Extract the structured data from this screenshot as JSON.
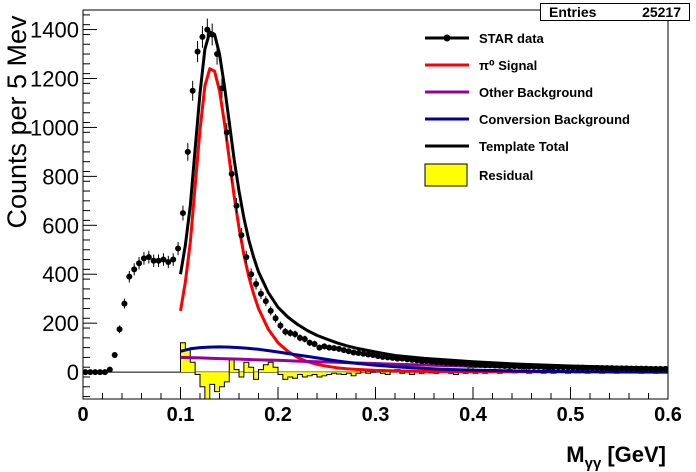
{
  "stats": {
    "entries_label": "Entries",
    "entries_value": "25217"
  },
  "chart_data": {
    "type": "line",
    "xlabel": "M",
    "xlabel_sub": "γγ",
    "xlabel_unit": "[GeV]",
    "ylabel": "Counts per 5 Mev",
    "xlim": [
      0,
      0.6
    ],
    "ylim": [
      -110,
      1480
    ],
    "x_ticks": [
      "0",
      "0.1",
      "0.2",
      "0.3",
      "0.4",
      "0.5",
      "0.6"
    ],
    "x_tick_values": [
      0,
      0.1,
      0.2,
      0.3,
      0.4,
      0.5,
      0.6
    ],
    "y_ticks": [
      "0",
      "200",
      "400",
      "600",
      "800",
      "1000",
      "1200",
      "1400"
    ],
    "y_tick_values": [
      0,
      200,
      400,
      600,
      800,
      1000,
      1200,
      1400
    ],
    "grid": false,
    "legend_position": "top-right",
    "legend": [
      {
        "label": "STAR data",
        "kind": "marker-line",
        "color": "#000000"
      },
      {
        "label": "π⁰ Signal",
        "kind": "line",
        "color": "#ff0000"
      },
      {
        "label": "Other Background",
        "kind": "line",
        "color": "#990099"
      },
      {
        "label": "Conversion Background",
        "kind": "line",
        "color": "#000099"
      },
      {
        "label": "Template Total",
        "kind": "line",
        "color": "#000000"
      },
      {
        "label": "Residual",
        "kind": "box",
        "color": "#ffff00"
      }
    ],
    "series": [
      {
        "name": "STAR data",
        "kind": "points",
        "color": "#000000",
        "x": [
          0.0025,
          0.0075,
          0.0125,
          0.0175,
          0.0225,
          0.0275,
          0.0325,
          0.0375,
          0.0425,
          0.0475,
          0.0525,
          0.0575,
          0.0625,
          0.0675,
          0.0725,
          0.0775,
          0.0825,
          0.0875,
          0.0925,
          0.0975,
          0.1025,
          0.1075,
          0.1125,
          0.1175,
          0.1225,
          0.1275,
          0.1325,
          0.1375,
          0.1425,
          0.1475,
          0.1525,
          0.1575,
          0.1625,
          0.1675,
          0.1725,
          0.1775,
          0.1825,
          0.1875,
          0.1925,
          0.1975,
          0.2025,
          0.2075,
          0.2125,
          0.2175,
          0.2225,
          0.2275,
          0.2325,
          0.2375,
          0.2425,
          0.2475,
          0.2525,
          0.2575,
          0.2625,
          0.2675,
          0.2725,
          0.2775,
          0.2825,
          0.2875,
          0.2925,
          0.2975,
          0.3025,
          0.3075,
          0.3125,
          0.3175,
          0.3225,
          0.3275,
          0.3325,
          0.3375,
          0.3425,
          0.3475,
          0.3525,
          0.3575,
          0.3625,
          0.3675,
          0.3725,
          0.3775,
          0.3825,
          0.3875,
          0.3925,
          0.3975,
          0.4025,
          0.4075,
          0.4125,
          0.4175,
          0.4225,
          0.4275,
          0.4325,
          0.4375,
          0.4425,
          0.4475,
          0.4525,
          0.4575,
          0.4625,
          0.4675,
          0.4725,
          0.4775,
          0.4825,
          0.4875,
          0.4925,
          0.4975,
          0.5025,
          0.5075,
          0.5125,
          0.5175,
          0.5225,
          0.5275,
          0.5325,
          0.5375,
          0.5425,
          0.5475,
          0.5525,
          0.5575,
          0.5625,
          0.5675,
          0.5725,
          0.5775,
          0.5825,
          0.5875,
          0.5925,
          0.5975
        ],
        "y": [
          0,
          0,
          0,
          0,
          0,
          10,
          70,
          175,
          280,
          390,
          420,
          445,
          465,
          470,
          455,
          455,
          460,
          450,
          460,
          505,
          650,
          900,
          1150,
          1310,
          1370,
          1400,
          1380,
          1300,
          1160,
          980,
          810,
          680,
          560,
          470,
          400,
          360,
          320,
          290,
          250,
          220,
          190,
          165,
          160,
          155,
          140,
          135,
          120,
          115,
          100,
          105,
          100,
          98,
          95,
          90,
          85,
          80,
          78,
          75,
          72,
          70,
          65,
          62,
          60,
          58,
          55,
          55,
          52,
          50,
          48,
          45,
          45,
          42,
          40,
          40,
          38,
          36,
          35,
          35,
          33,
          32,
          30,
          30,
          28,
          28,
          27,
          26,
          25,
          25,
          24,
          24,
          23,
          23,
          22,
          22,
          21,
          21,
          20,
          20,
          19,
          19,
          18,
          18,
          18,
          17,
          17,
          17,
          16,
          16,
          16,
          15,
          15,
          15,
          14,
          14,
          14,
          14,
          13,
          13,
          13,
          13
        ]
      },
      {
        "name": "π⁰ Signal",
        "kind": "curve",
        "color": "#ff0000",
        "x": [
          0.1,
          0.105,
          0.11,
          0.115,
          0.12,
          0.125,
          0.13,
          0.135,
          0.14,
          0.145,
          0.15,
          0.155,
          0.16,
          0.165,
          0.17,
          0.175,
          0.18,
          0.19,
          0.2,
          0.21,
          0.22,
          0.23,
          0.24,
          0.25,
          0.26,
          0.27,
          0.28,
          0.3,
          0.32,
          0.35,
          0.4,
          0.45,
          0.5,
          0.55,
          0.6
        ],
        "y": [
          250,
          370,
          530,
          760,
          990,
          1170,
          1240,
          1230,
          1150,
          1020,
          870,
          720,
          590,
          480,
          390,
          320,
          260,
          175,
          120,
          85,
          60,
          43,
          32,
          24,
          18,
          14,
          11,
          7,
          5,
          3,
          2,
          1,
          1,
          0,
          0
        ]
      },
      {
        "name": "Other Background",
        "kind": "curve",
        "color": "#990099",
        "x": [
          0.1,
          0.12,
          0.14,
          0.16,
          0.18,
          0.2,
          0.22,
          0.24,
          0.26,
          0.28,
          0.3,
          0.32,
          0.34,
          0.36,
          0.38,
          0.4,
          0.45,
          0.5,
          0.55,
          0.6
        ],
        "y": [
          60,
          58,
          55,
          53,
          50,
          48,
          45,
          42,
          40,
          37,
          35,
          32,
          30,
          28,
          26,
          24,
          20,
          17,
          15,
          13
        ]
      },
      {
        "name": "Conversion Background",
        "kind": "curve",
        "color": "#000099",
        "x": [
          0.1,
          0.11,
          0.12,
          0.13,
          0.14,
          0.15,
          0.16,
          0.17,
          0.18,
          0.19,
          0.2,
          0.21,
          0.22,
          0.23,
          0.24,
          0.25,
          0.26,
          0.27,
          0.28,
          0.29,
          0.3,
          0.32,
          0.34,
          0.36,
          0.38,
          0.4,
          0.45,
          0.5,
          0.55,
          0.6
        ],
        "y": [
          85,
          95,
          100,
          102,
          103,
          102,
          100,
          97,
          93,
          88,
          82,
          76,
          70,
          64,
          58,
          52,
          46,
          41,
          36,
          32,
          28,
          22,
          17,
          13,
          10,
          8,
          4,
          2,
          1,
          0
        ]
      },
      {
        "name": "Template Total",
        "kind": "curve",
        "color": "#000000",
        "x": [
          0.1,
          0.105,
          0.11,
          0.115,
          0.12,
          0.125,
          0.13,
          0.135,
          0.14,
          0.145,
          0.15,
          0.155,
          0.16,
          0.165,
          0.17,
          0.175,
          0.18,
          0.19,
          0.2,
          0.21,
          0.22,
          0.23,
          0.24,
          0.25,
          0.26,
          0.27,
          0.28,
          0.3,
          0.32,
          0.35,
          0.4,
          0.45,
          0.5,
          0.55,
          0.6
        ],
        "y": [
          400,
          520,
          680,
          910,
          1140,
          1320,
          1390,
          1380,
          1300,
          1170,
          1020,
          870,
          740,
          630,
          540,
          470,
          410,
          325,
          265,
          225,
          195,
          170,
          150,
          135,
          120,
          108,
          98,
          82,
          68,
          56,
          42,
          32,
          25,
          20,
          16
        ]
      }
    ],
    "residual": {
      "name": "Residual",
      "color": "#ffff00",
      "x_edges_start": 0.1,
      "bin_width": 0.005,
      "values": [
        120,
        90,
        40,
        -10,
        -60,
        -110,
        -50,
        -80,
        -60,
        -40,
        50,
        10,
        -20,
        40,
        20,
        -30,
        10,
        30,
        40,
        20,
        -10,
        -30,
        -20,
        -25,
        -10,
        -20,
        -15,
        -10,
        -20,
        -15,
        -10,
        -5,
        -8,
        -10,
        -5,
        -15,
        -5,
        10,
        -5,
        0,
        5,
        -5,
        -10,
        5,
        10,
        -5,
        0,
        -10,
        5,
        -5,
        10,
        -3,
        -5,
        5,
        15,
        -5,
        -10,
        5,
        -5,
        20,
        -5,
        0,
        -5,
        5,
        10,
        -5,
        0,
        10,
        -3,
        5,
        15,
        -5,
        0,
        5,
        -5,
        10,
        -5,
        0,
        5,
        -5,
        5,
        -3,
        10,
        -5,
        0,
        5,
        -5,
        0,
        10,
        -5,
        5,
        -3,
        0,
        5,
        -5,
        0,
        5,
        -5,
        5,
        0
      ]
    }
  }
}
